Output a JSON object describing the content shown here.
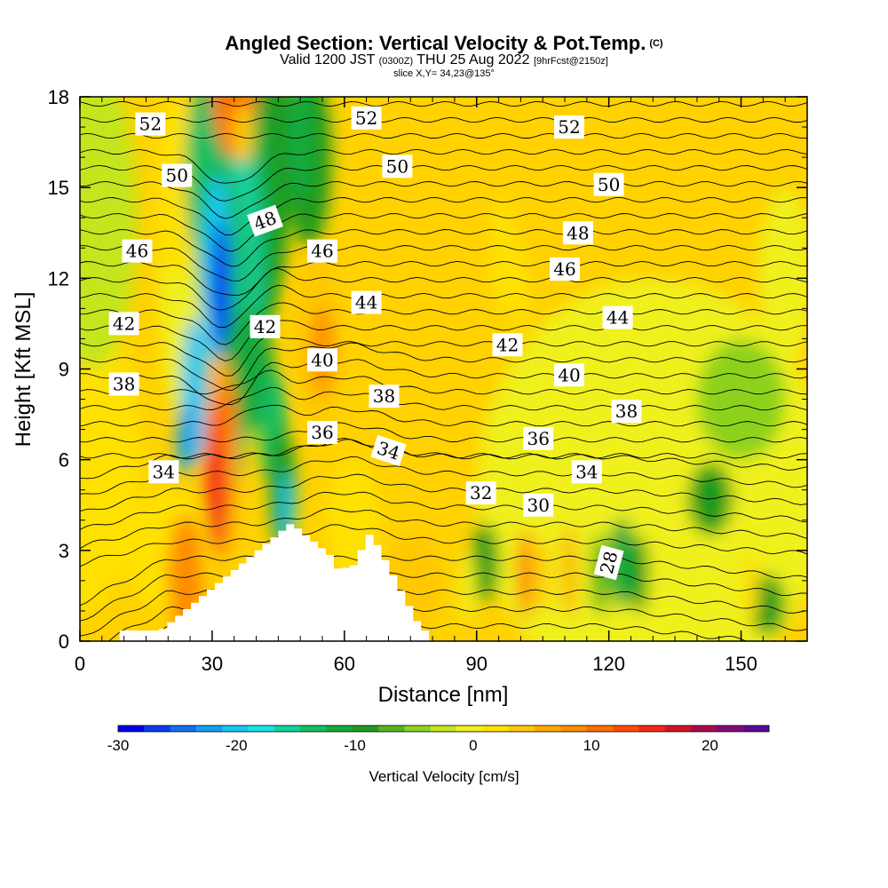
{
  "header": {
    "title": "Angled Section: Vertical Velocity & Pot.Temp.",
    "title_mark": "(C)",
    "valid_prefix": "Valid 1200 JST",
    "valid_utc": "(0300Z)",
    "valid_date": "THU 25 Aug 2022",
    "forecast": "[9hrFcst@2150z]",
    "slice": "slice X,Y= 34,23@135°"
  },
  "chart_data": {
    "type": "contour",
    "xlabel": "Distance [nm]",
    "ylabel": "Height [Kft MSL]",
    "xlim": [
      0,
      165
    ],
    "ylim": [
      0,
      18
    ],
    "x_ticks": [
      0,
      30,
      60,
      90,
      120,
      150
    ],
    "y_ticks": [
      0,
      3,
      6,
      9,
      12,
      15,
      18
    ],
    "colorbar": {
      "label": "Vertical Velocity [cm/s]",
      "min": -30,
      "max": 25,
      "step": 2.5,
      "ticks": [
        -30,
        -20,
        -10,
        0,
        10,
        20
      ],
      "colors": [
        "#0000ee",
        "#0a3cf0",
        "#1470f0",
        "#14a0f0",
        "#14c8f0",
        "#14e6e6",
        "#14d2a0",
        "#14be64",
        "#14aa3c",
        "#1e9b1e",
        "#55b41e",
        "#8cd21e",
        "#c3e61e",
        "#f0f01e",
        "#ffe100",
        "#ffc800",
        "#ffaa00",
        "#ff8c00",
        "#ff6e00",
        "#ff4b0a",
        "#f52814",
        "#d21428",
        "#aa0a50",
        "#820a78",
        "#5a0a96"
      ]
    },
    "terrain_height_peaks_kft": [
      {
        "distance": 48,
        "height": 3.9
      },
      {
        "distance": 66,
        "height": 3.6
      }
    ],
    "velocity_features": [
      {
        "distance": 33,
        "height": 12.0,
        "value": -28
      },
      {
        "distance": 31,
        "height": 5.5,
        "value": 23
      },
      {
        "distance": 36,
        "height": 18.0,
        "value": 15
      },
      {
        "distance": 54,
        "height": 10.5,
        "value": 12
      },
      {
        "distance": 100,
        "height": 2.2,
        "value": 15
      },
      {
        "distance": 111,
        "height": 2.3,
        "value": 12
      },
      {
        "distance": 123,
        "height": 2.6,
        "value": -10
      },
      {
        "distance": 92,
        "height": 2.6,
        "value": -8
      },
      {
        "distance": 143,
        "height": 4.7,
        "value": -7
      }
    ],
    "theta_contour_labels": [
      {
        "label": "52",
        "distance": 16,
        "height": 17.1
      },
      {
        "label": "52",
        "distance": 65,
        "height": 17.3
      },
      {
        "label": "52",
        "distance": 111,
        "height": 17.0
      },
      {
        "label": "50",
        "distance": 22,
        "height": 15.4
      },
      {
        "label": "50",
        "distance": 72,
        "height": 15.7
      },
      {
        "label": "50",
        "distance": 120,
        "height": 15.1
      },
      {
        "label": "48",
        "distance": 42,
        "height": 13.9
      },
      {
        "label": "48",
        "distance": 113,
        "height": 13.5
      },
      {
        "label": "46",
        "distance": 13,
        "height": 12.9
      },
      {
        "label": "46",
        "distance": 55,
        "height": 12.9
      },
      {
        "label": "46",
        "distance": 110,
        "height": 12.3
      },
      {
        "label": "44",
        "distance": 65,
        "height": 11.2
      },
      {
        "label": "44",
        "distance": 122,
        "height": 10.7
      },
      {
        "label": "42",
        "distance": 10,
        "height": 10.5
      },
      {
        "label": "42",
        "distance": 42,
        "height": 10.4
      },
      {
        "label": "42",
        "distance": 97,
        "height": 9.8
      },
      {
        "label": "40",
        "distance": 55,
        "height": 9.3
      },
      {
        "label": "40",
        "distance": 111,
        "height": 8.8
      },
      {
        "label": "38",
        "distance": 10,
        "height": 8.5
      },
      {
        "label": "38",
        "distance": 69,
        "height": 8.1
      },
      {
        "label": "38",
        "distance": 124,
        "height": 7.6
      },
      {
        "label": "36",
        "distance": 55,
        "height": 6.9
      },
      {
        "label": "36",
        "distance": 104,
        "height": 6.7
      },
      {
        "label": "34",
        "distance": 19,
        "height": 5.6
      },
      {
        "label": "34",
        "distance": 70,
        "height": 6.3
      },
      {
        "label": "34",
        "distance": 115,
        "height": 5.6
      },
      {
        "label": "32",
        "distance": 91,
        "height": 4.9
      },
      {
        "label": "30",
        "distance": 104,
        "height": 4.5
      },
      {
        "label": "28",
        "distance": 120,
        "height": 2.6
      }
    ]
  }
}
